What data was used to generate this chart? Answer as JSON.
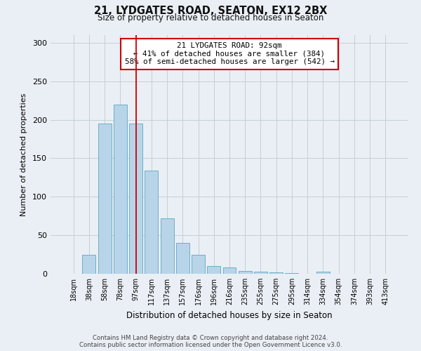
{
  "title": "21, LYDGATES ROAD, SEATON, EX12 2BX",
  "subtitle": "Size of property relative to detached houses in Seaton",
  "xlabel": "Distribution of detached houses by size in Seaton",
  "ylabel": "Number of detached properties",
  "bar_labels": [
    "18sqm",
    "38sqm",
    "58sqm",
    "78sqm",
    "97sqm",
    "117sqm",
    "137sqm",
    "157sqm",
    "176sqm",
    "196sqm",
    "216sqm",
    "235sqm",
    "255sqm",
    "275sqm",
    "295sqm",
    "314sqm",
    "334sqm",
    "354sqm",
    "374sqm",
    "393sqm",
    "413sqm"
  ],
  "bar_values": [
    0,
    25,
    195,
    220,
    195,
    134,
    72,
    40,
    25,
    10,
    8,
    4,
    3,
    2,
    1,
    0,
    3,
    0,
    0,
    0,
    0
  ],
  "bar_color": "#b8d4e8",
  "bar_edge_color": "#6aafc8",
  "background_color": "#eaeff5",
  "grid_color": "#c5cdd8",
  "vline_x_index": 4,
  "vline_color": "#cc0000",
  "annotation_line1": "21 LYDGATES ROAD: 92sqm",
  "annotation_line2": "← 41% of detached houses are smaller (384)",
  "annotation_line3": "58% of semi-detached houses are larger (542) →",
  "annotation_box_color": "#ffffff",
  "annotation_box_edge": "#cc0000",
  "ylim": [
    0,
    310
  ],
  "yticks": [
    0,
    50,
    100,
    150,
    200,
    250,
    300
  ],
  "footer_line1": "Contains HM Land Registry data © Crown copyright and database right 2024.",
  "footer_line2": "Contains public sector information licensed under the Open Government Licence v3.0."
}
